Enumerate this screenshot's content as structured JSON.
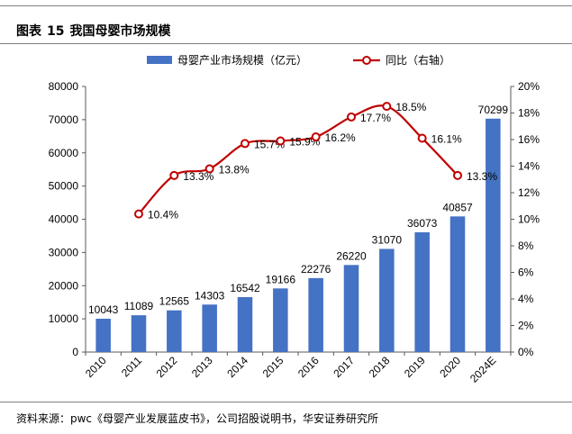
{
  "figure": {
    "label": "图表",
    "number": "15",
    "title": "我国母婴市场规模"
  },
  "source": "资料来源：pwc《母婴产业发展蓝皮书》，公司招股说明书，华安证券研究所",
  "chart_data": {
    "type": "bar",
    "title": "我国母婴市场规模",
    "categories": [
      "2010",
      "2011",
      "2012",
      "2013",
      "2014",
      "2015",
      "2016",
      "2017",
      "2018",
      "2019",
      "2020",
      "2024E"
    ],
    "series": [
      {
        "name": "母婴产业市场规模（亿元）",
        "type": "bar",
        "axis": "left",
        "color": "#4472c4",
        "values": [
          10043,
          11089,
          12565,
          14303,
          16542,
          19166,
          22276,
          26220,
          31070,
          36073,
          40857,
          70299
        ],
        "labels": [
          "10043",
          "11089",
          "12565",
          "14303",
          "16542",
          "19166",
          "22276",
          "26220",
          "31070",
          "36073",
          "40857",
          "70299"
        ]
      },
      {
        "name": "同比（右轴）",
        "type": "line",
        "axis": "right",
        "color": "#c00000",
        "values": [
          null,
          10.4,
          13.3,
          13.8,
          15.7,
          15.9,
          16.2,
          17.7,
          18.5,
          16.1,
          13.3,
          null
        ],
        "labels": [
          null,
          "10.4%",
          "13.3%",
          "13.8%",
          "15.7%",
          "15.9%",
          "16.2%",
          "17.7%",
          "18.5%",
          "16.1%",
          "13.3%",
          null
        ]
      }
    ],
    "y_left": {
      "min": 0,
      "max": 80000,
      "ticks": [
        "0",
        "10000",
        "20000",
        "30000",
        "40000",
        "50000",
        "60000",
        "70000",
        "80000"
      ]
    },
    "y_right": {
      "min": 0,
      "max": 20,
      "ticks": [
        "0%",
        "2%",
        "4%",
        "6%",
        "8%",
        "10%",
        "12%",
        "14%",
        "16%",
        "18%",
        "20%"
      ]
    },
    "legend_position": "top-center",
    "grid": false
  }
}
